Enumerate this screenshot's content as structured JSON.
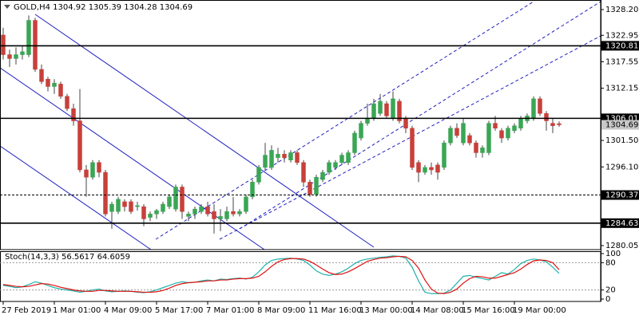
{
  "chart_data": [
    {
      "type": "candlestick",
      "symbol": "GOLD,H4",
      "header_values": [
        1304.92,
        1305.39,
        1304.28,
        1304.69
      ],
      "categories": [
        "27 Feb 2019",
        null,
        null,
        null,
        null,
        null,
        null,
        null,
        "1 Mar 01:00",
        null,
        null,
        null,
        null,
        null,
        null,
        null,
        "4 Mar 09:00",
        null,
        null,
        null,
        null,
        null,
        null,
        null,
        "5 Mar 17:00",
        null,
        null,
        null,
        null,
        null,
        null,
        null,
        "7 Mar 01:00",
        null,
        null,
        null,
        null,
        null,
        null,
        null,
        "8 Mar 09:00",
        null,
        null,
        null,
        null,
        null,
        null,
        null,
        "11 Mar 16:00",
        null,
        null,
        null,
        null,
        null,
        null,
        null,
        "13 Mar 00:00",
        null,
        null,
        null,
        null,
        null,
        null,
        null,
        "14 Mar 08:00",
        null,
        null,
        null,
        null,
        null,
        null,
        null,
        "15 Mar 16:00",
        null,
        null,
        null,
        null,
        null,
        null,
        null,
        "19 Mar 00:00",
        null,
        null,
        null,
        null,
        null,
        null,
        null
      ],
      "open": [
        1323,
        1319,
        1318.2,
        1319,
        1319,
        1326,
        1316,
        1314,
        1312.5,
        1313,
        1310.5,
        1308,
        1305.5,
        1295.5,
        1294,
        1297,
        1295,
        1287,
        1287,
        1289,
        1289,
        1288,
        1288,
        1285.8,
        1286.5,
        1287,
        1288,
        1287.5,
        1292,
        1286,
        1286.5,
        1287,
        1288,
        1287,
        1285.5,
        1285.5,
        1287,
        1286.5,
        1287,
        1290,
        1293,
        1296,
        1296,
        1298,
        1298.7,
        1297.5,
        1299,
        1297,
        1293,
        1290.5,
        1293.5,
        1295,
        1296,
        1297,
        1297,
        1299,
        1302,
        1305,
        1306,
        1307,
        1309,
        1306,
        1309.5,
        1306,
        1304,
        1297,
        1295,
        1296,
        1296.5,
        1296,
        1301,
        1304,
        1301,
        1302.5,
        1301,
        1299,
        1299,
        1305,
        1303.5,
        1302,
        1303.5,
        1304,
        1305.5,
        1306,
        1310,
        1307,
        1305,
        1304.92
      ],
      "high": [
        1324.5,
        1320,
        1320.5,
        1320.8,
        1327,
        1326.5,
        1317,
        1314.5,
        1314,
        1313.5,
        1311,
        1309,
        1312,
        1296.5,
        1297.5,
        1297.5,
        1295.5,
        1289,
        1290,
        1289.5,
        1289.5,
        1289,
        1288.5,
        1287,
        1287.5,
        1289,
        1290.5,
        1292.5,
        1292.5,
        1287,
        1288,
        1288.5,
        1289,
        1288.5,
        1287.5,
        1288,
        1290,
        1287.5,
        1290.5,
        1293.5,
        1296.5,
        1301,
        1300.5,
        1300,
        1299.5,
        1299.5,
        1299.5,
        1297.5,
        1293.5,
        1294.5,
        1295.5,
        1297.5,
        1297.5,
        1299,
        1299.5,
        1303.5,
        1305.5,
        1309,
        1310,
        1311,
        1309.5,
        1311.5,
        1310,
        1306.5,
        1304.5,
        1297.5,
        1296.5,
        1297,
        1297,
        1301.5,
        1304.5,
        1305,
        1306,
        1303,
        1301.5,
        1300.5,
        1305.5,
        1306.5,
        1304,
        1304.5,
        1305,
        1306.5,
        1307,
        1310.5,
        1310.5,
        1307.5,
        1306,
        1305.39
      ],
      "low": [
        1318,
        1316.5,
        1317,
        1318,
        1318.5,
        1315.5,
        1313,
        1311.5,
        1311,
        1310,
        1307.5,
        1304.5,
        1295,
        1290,
        1293.5,
        1294,
        1286,
        1283.5,
        1286.5,
        1287,
        1286.5,
        1287.2,
        1284,
        1285,
        1285.5,
        1286.5,
        1287.5,
        1287,
        1285.5,
        1285,
        1285.5,
        1286.5,
        1286,
        1282.5,
        1283,
        1285,
        1286,
        1286,
        1286.5,
        1289.5,
        1292.5,
        1295.5,
        1295.5,
        1297,
        1297,
        1297,
        1296.5,
        1292,
        1290,
        1290,
        1293,
        1294.5,
        1295.5,
        1296.5,
        1296.5,
        1298.5,
        1301.5,
        1304.5,
        1305.5,
        1306.5,
        1306,
        1305.5,
        1305,
        1303,
        1295.5,
        1293,
        1294.5,
        1294.5,
        1293.5,
        1295.5,
        1300.5,
        1302,
        1300.5,
        1300.5,
        1298,
        1298,
        1298.5,
        1303.5,
        1301,
        1301.5,
        1303,
        1303.5,
        1305,
        1305.5,
        1306.5,
        1303.5,
        1303,
        1304.28
      ],
      "close": [
        1319,
        1318.2,
        1319,
        1319.6,
        1326,
        1316,
        1313.5,
        1312.5,
        1313.2,
        1310.5,
        1308,
        1305.5,
        1295.5,
        1294,
        1297,
        1295,
        1286.5,
        1288.5,
        1289.5,
        1288,
        1287,
        1288.2,
        1285.5,
        1286.5,
        1287.2,
        1288.5,
        1290,
        1292,
        1287,
        1286.5,
        1287.5,
        1288,
        1286.5,
        1285.5,
        1286,
        1287,
        1286.5,
        1287,
        1290,
        1293,
        1296,
        1298.5,
        1299.5,
        1298.7,
        1298,
        1299,
        1297,
        1293,
        1290.5,
        1294,
        1295,
        1297,
        1297,
        1298.5,
        1299,
        1303,
        1305,
        1306,
        1309,
        1309.5,
        1306.5,
        1310,
        1305.5,
        1304,
        1296,
        1295,
        1296,
        1295.5,
        1295,
        1301,
        1304,
        1302.5,
        1305,
        1301,
        1299,
        1300,
        1305,
        1304,
        1302,
        1304,
        1304.5,
        1306,
        1306.5,
        1310,
        1307,
        1305.5,
        1304.5,
        1304.69
      ],
      "up_color": "#3aa655",
      "down_color": "#c8403a",
      "ylim": [
        1279.23,
        1330.15
      ],
      "yticks": [
        {
          "value": 1328.2,
          "label": "1328.20"
        },
        {
          "value": 1322.95,
          "label": "1322.95"
        },
        {
          "value": 1317.55,
          "label": "1317.55"
        },
        {
          "value": 1312.15,
          "label": "1312.15"
        },
        {
          "value": 1301.5,
          "label": "1301.50"
        },
        {
          "value": 1296.1,
          "label": "1296.10"
        },
        {
          "value": 1280.05,
          "label": "1280.05"
        }
      ],
      "levels": [
        {
          "value": 1320.81,
          "style": "solid"
        },
        {
          "value": 1306.01,
          "style": "solid"
        },
        {
          "value": 1290.37,
          "style": "dashed"
        },
        {
          "value": 1284.63,
          "style": "solid"
        }
      ],
      "last_price": 1304.69
    },
    {
      "type": "line",
      "title": "Stoch(14,3,3)",
      "header_values": [
        56.5617,
        64.6059
      ],
      "series": [
        {
          "color": "#20b2aa",
          "values": [
            30,
            28,
            25,
            27,
            32,
            38,
            35,
            30,
            25,
            22,
            20,
            18,
            15,
            17,
            20,
            22,
            18,
            16,
            17,
            18,
            17,
            15,
            14,
            16,
            20,
            25,
            30,
            35,
            38,
            36,
            37,
            40,
            42,
            40,
            44,
            43,
            45,
            46,
            44,
            48,
            60,
            75,
            85,
            88,
            89,
            90,
            88,
            85,
            75,
            62,
            55,
            52,
            55,
            60,
            68,
            78,
            85,
            88,
            90,
            92,
            93,
            95,
            94,
            90,
            70,
            40,
            15,
            12,
            12,
            13,
            20,
            35,
            50,
            52,
            48,
            45,
            42,
            50,
            58,
            55,
            65,
            78,
            85,
            88,
            86,
            82,
            70,
            56.5617
          ]
        },
        {
          "color": "#e01010",
          "values": [
            32,
            30,
            28,
            27,
            28,
            31,
            34,
            33,
            30,
            26,
            23,
            20,
            18,
            17,
            17,
            19,
            19,
            18,
            17,
            17,
            17,
            16,
            15,
            15,
            16,
            19,
            24,
            30,
            34,
            36,
            37,
            38,
            40,
            40,
            42,
            42,
            44,
            45,
            45,
            46,
            50,
            60,
            72,
            82,
            87,
            89,
            89,
            88,
            83,
            75,
            66,
            58,
            54,
            55,
            60,
            67,
            75,
            83,
            87,
            90,
            91,
            93,
            94,
            93,
            85,
            68,
            42,
            22,
            13,
            12,
            15,
            22,
            35,
            45,
            50,
            49,
            46,
            46,
            50,
            54,
            58,
            66,
            76,
            84,
            86,
            85,
            80,
            64.6059
          ]
        }
      ],
      "ylim": [
        0,
        100
      ],
      "yticks": [
        0,
        20,
        80,
        100
      ],
      "levels": [
        20,
        80
      ]
    }
  ]
}
